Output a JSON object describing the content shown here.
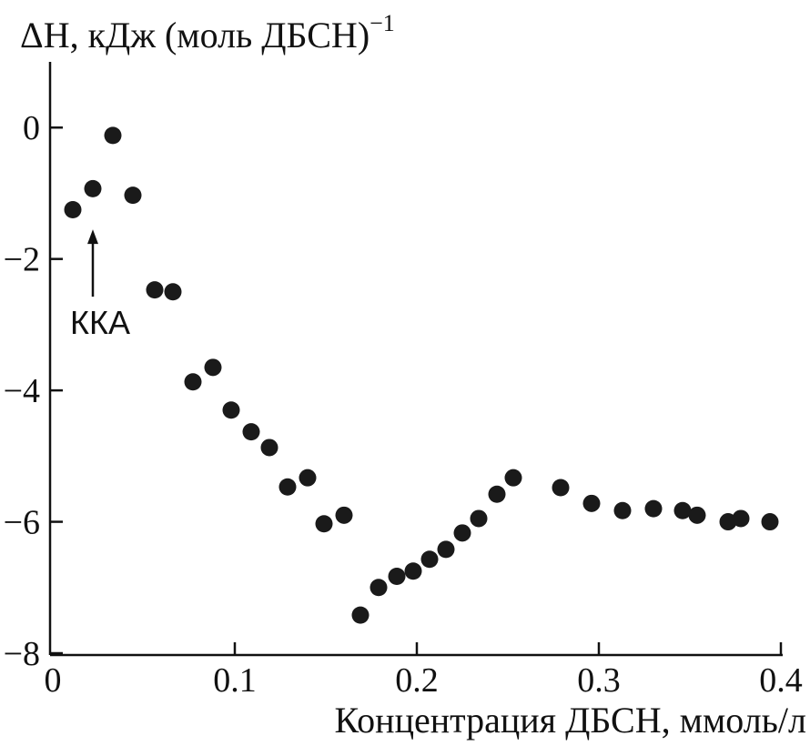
{
  "chart_data": {
    "type": "scatter",
    "ylabel_prefix": "ΔH",
    "ylabel_suffix": ", кДж (моль ДБСН)",
    "ylabel_exponent": "−1",
    "xlabel": "Концентрация ДБСН, ммоль/л",
    "xlim": [
      0,
      0.4
    ],
    "ylim": [
      -8,
      1
    ],
    "xticks": [
      0,
      0.1,
      0.2,
      0.3,
      0.4
    ],
    "xtick_labels": [
      "0",
      "0.1",
      "0.2",
      "0.3",
      "0.4"
    ],
    "yticks": [
      0,
      -2,
      -4,
      -6,
      -8
    ],
    "ytick_labels": [
      "0",
      "−2",
      "−4",
      "−6",
      "−8"
    ],
    "grid": false,
    "point_color": "#1a1a1a",
    "annotation": {
      "text": "ККА",
      "x": 0.022,
      "y": -1.55
    },
    "series": [
      {
        "x": [
          0.011,
          0.022,
          0.033,
          0.044,
          0.056,
          0.066,
          0.077,
          0.088,
          0.098,
          0.109,
          0.119,
          0.129,
          0.14,
          0.149,
          0.16,
          0.169,
          0.179,
          0.189,
          0.198,
          0.207,
          0.216,
          0.225,
          0.234,
          0.244,
          0.253,
          0.279,
          0.296,
          0.313,
          0.33,
          0.346,
          0.354,
          0.371,
          0.378,
          0.394
        ],
        "y": [
          -1.25,
          -0.93,
          -0.12,
          -1.03,
          -2.47,
          -2.5,
          -3.87,
          -3.65,
          -4.3,
          -4.63,
          -4.87,
          -5.47,
          -5.33,
          -6.03,
          -5.9,
          -7.42,
          -7.0,
          -6.83,
          -6.75,
          -6.57,
          -6.42,
          -6.17,
          -5.95,
          -5.58,
          -5.33,
          -5.48,
          -5.72,
          -5.83,
          -5.8,
          -5.83,
          -5.9,
          -6.0,
          -5.95,
          -6.0
        ]
      }
    ]
  }
}
